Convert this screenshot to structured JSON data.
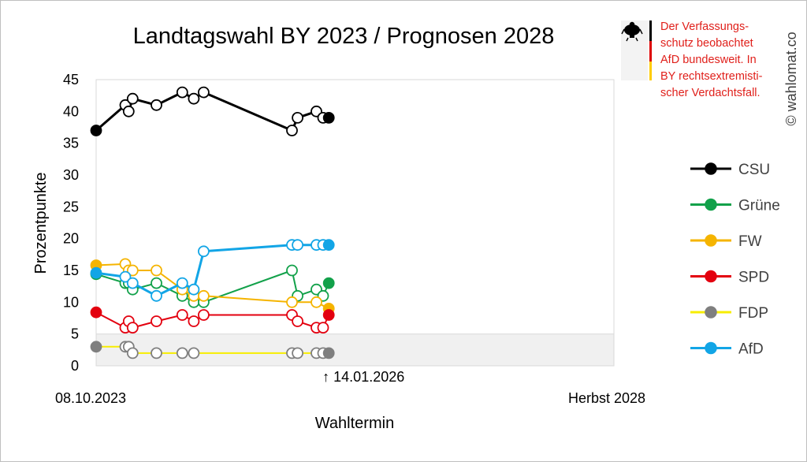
{
  "chart_data": {
    "type": "line",
    "title": "Landtagswahl BY 2023 / Prognosen 2028",
    "xlabel": "Wahltermin",
    "ylabel": "Prozentpunkte",
    "ylim": [
      0,
      45
    ],
    "yticks": [
      0,
      5,
      10,
      15,
      20,
      25,
      30,
      35,
      40,
      45
    ],
    "x_range": [
      "2023-10-08",
      "2028-10-01"
    ],
    "x_tick_labels": {
      "start": "08.10.2023",
      "end": "Herbst 2028"
    },
    "marker_annotation": {
      "date": "2026-01-14",
      "label": "↑ 14.01.2026"
    },
    "shaded_band": {
      "from": 0,
      "to": 5
    },
    "grid": "vertical-off",
    "legend_position": "right",
    "series": [
      {
        "name": "CSU",
        "color": "#000000",
        "fill": "#000000",
        "points": [
          [
            "2023-10-08",
            37
          ],
          [
            "2024-01-20",
            41
          ],
          [
            "2024-02-01",
            40
          ],
          [
            "2024-02-15",
            42
          ],
          [
            "2024-05-10",
            41
          ],
          [
            "2024-08-10",
            43
          ],
          [
            "2024-09-20",
            42
          ],
          [
            "2024-10-25",
            43
          ],
          [
            "2025-09-05",
            37
          ],
          [
            "2025-09-25",
            39
          ],
          [
            "2025-12-01",
            40
          ],
          [
            "2025-12-25",
            39
          ],
          [
            "2026-01-14",
            39
          ]
        ]
      },
      {
        "name": "Grüne",
        "color": "#12a14a",
        "fill": "#12a14a",
        "points": [
          [
            "2023-10-08",
            14.4
          ],
          [
            "2024-01-20",
            13
          ],
          [
            "2024-02-01",
            13
          ],
          [
            "2024-02-15",
            12
          ],
          [
            "2024-05-10",
            13
          ],
          [
            "2024-08-10",
            11
          ],
          [
            "2024-09-20",
            10
          ],
          [
            "2024-10-25",
            10
          ],
          [
            "2025-09-05",
            15
          ],
          [
            "2025-09-25",
            11
          ],
          [
            "2025-12-01",
            12
          ],
          [
            "2025-12-25",
            11
          ],
          [
            "2026-01-14",
            13
          ]
        ]
      },
      {
        "name": "FW",
        "color": "#f5b400",
        "fill": "#f5b400",
        "points": [
          [
            "2023-10-08",
            15.8
          ],
          [
            "2024-01-20",
            16
          ],
          [
            "2024-02-01",
            15
          ],
          [
            "2024-02-15",
            15
          ],
          [
            "2024-05-10",
            15
          ],
          [
            "2024-08-10",
            12
          ],
          [
            "2024-09-20",
            11
          ],
          [
            "2024-10-25",
            11
          ],
          [
            "2025-09-05",
            10
          ],
          [
            "2025-12-01",
            10
          ],
          [
            "2026-01-14",
            9
          ]
        ]
      },
      {
        "name": "SPD",
        "color": "#e3000f",
        "fill": "#e3000f",
        "points": [
          [
            "2023-10-08",
            8.4
          ],
          [
            "2024-01-20",
            6
          ],
          [
            "2024-02-01",
            7
          ],
          [
            "2024-02-15",
            6
          ],
          [
            "2024-05-10",
            7
          ],
          [
            "2024-08-10",
            8
          ],
          [
            "2024-09-20",
            7
          ],
          [
            "2024-10-25",
            8
          ],
          [
            "2025-09-05",
            8
          ],
          [
            "2025-09-25",
            7
          ],
          [
            "2025-12-01",
            6
          ],
          [
            "2025-12-25",
            6
          ],
          [
            "2026-01-14",
            8
          ]
        ]
      },
      {
        "name": "FDP",
        "color": "#f7ed00",
        "fill": "#7f7f7f",
        "points": [
          [
            "2023-10-08",
            3
          ],
          [
            "2024-01-20",
            3
          ],
          [
            "2024-02-01",
            3
          ],
          [
            "2024-02-15",
            2
          ],
          [
            "2024-05-10",
            2
          ],
          [
            "2024-08-10",
            2
          ],
          [
            "2024-09-20",
            2
          ],
          [
            "2025-09-05",
            2
          ],
          [
            "2025-09-25",
            2
          ],
          [
            "2025-12-01",
            2
          ],
          [
            "2025-12-25",
            2
          ],
          [
            "2026-01-14",
            2
          ]
        ]
      },
      {
        "name": "AfD",
        "color": "#12a5e6",
        "fill": "#12a5e6",
        "points": [
          [
            "2023-10-08",
            14.6
          ],
          [
            "2024-01-20",
            14
          ],
          [
            "2024-02-15",
            13
          ],
          [
            "2024-05-10",
            11
          ],
          [
            "2024-08-10",
            13
          ],
          [
            "2024-09-20",
            12
          ],
          [
            "2024-10-25",
            18
          ],
          [
            "2025-09-05",
            19
          ],
          [
            "2025-09-25",
            19
          ],
          [
            "2025-12-01",
            19
          ],
          [
            "2025-12-25",
            19
          ],
          [
            "2026-01-14",
            19
          ]
        ]
      }
    ]
  },
  "notice": {
    "lines": [
      "Der Verfassungs-",
      "schutz beobachtet",
      "AfD bundesweit. In",
      "BY rechtsextremisti-",
      "scher Verdachtsfall."
    ],
    "color": "#e0201b"
  },
  "flag_colors": [
    "#000000",
    "#dd0000",
    "#ffcc00"
  ],
  "emblem_icon": "federal-eagle-icon",
  "credit": "© wahlomat.co"
}
